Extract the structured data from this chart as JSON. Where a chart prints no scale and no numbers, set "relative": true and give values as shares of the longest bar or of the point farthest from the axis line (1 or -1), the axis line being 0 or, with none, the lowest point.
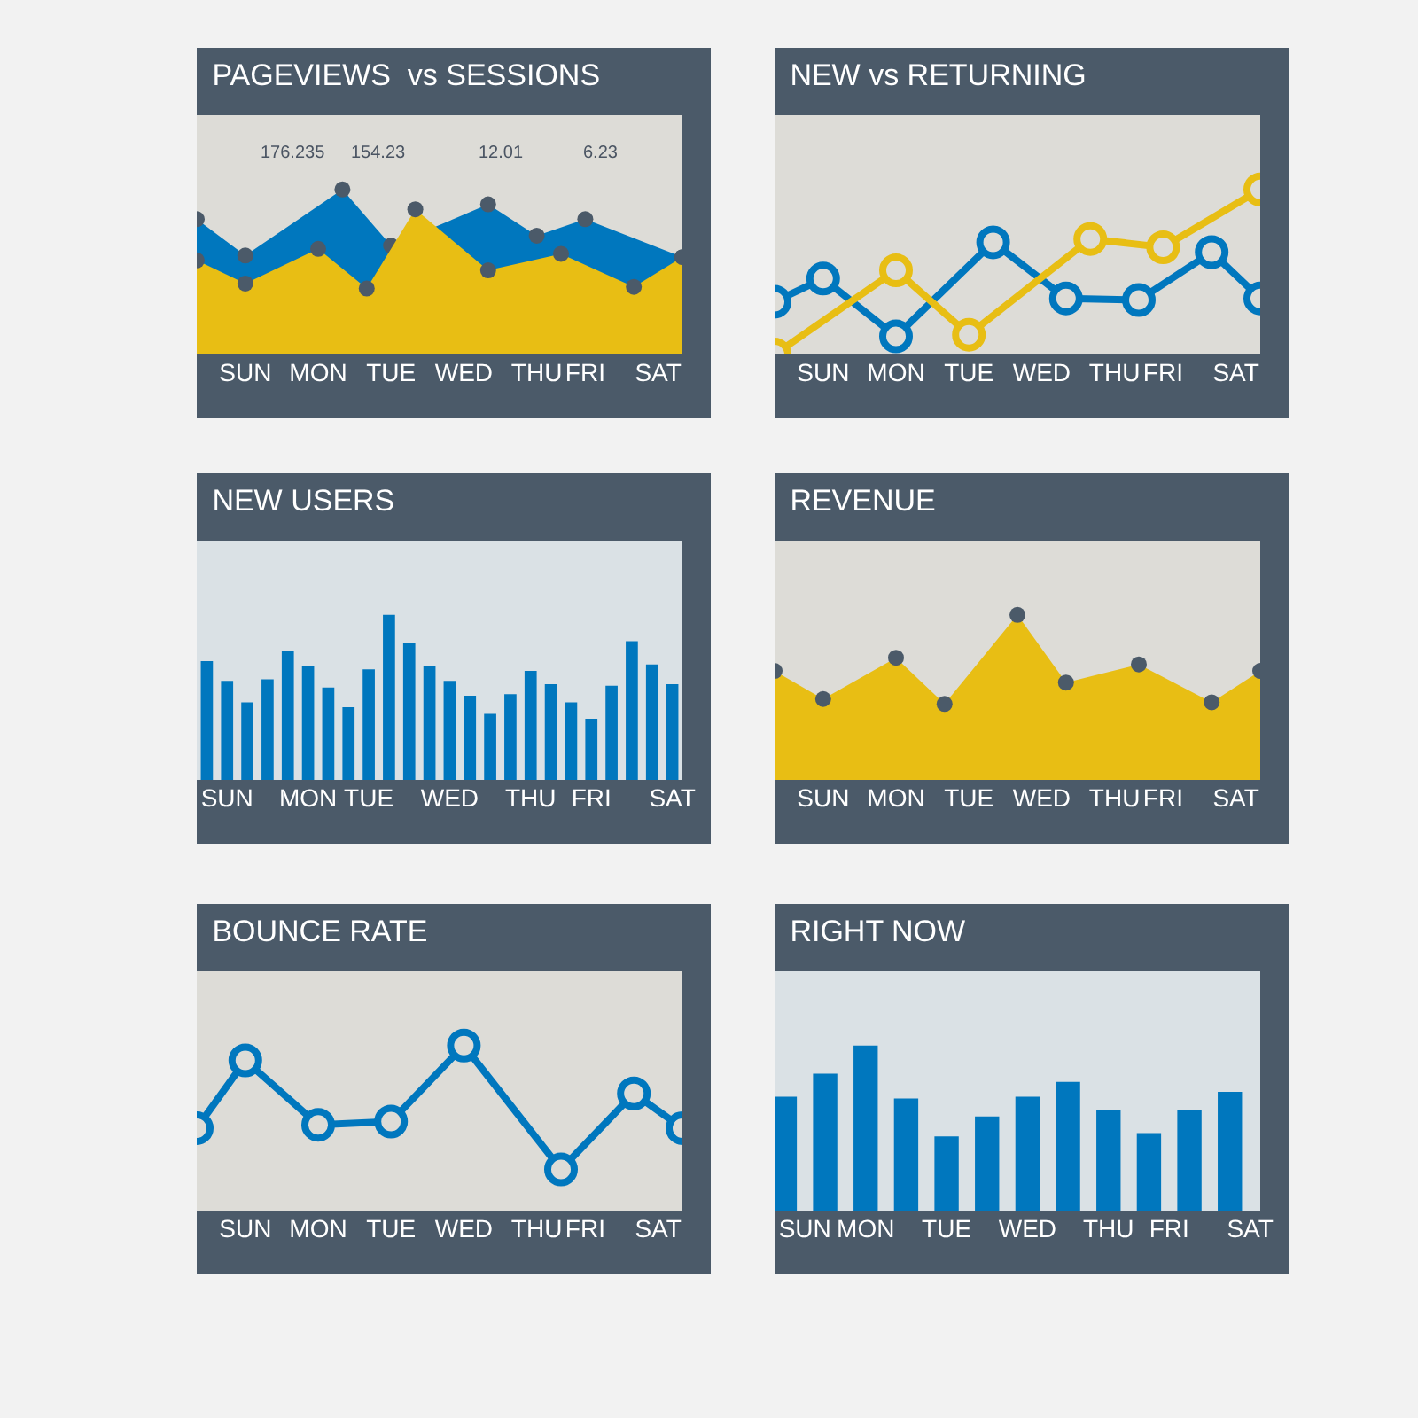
{
  "chart_data": [
    {
      "type": "area",
      "title": "PAGEVIEWS  vs SESSIONS",
      "relative": true,
      "tick_labels": "x",
      "marker": "circle",
      "legend": false,
      "grid": false,
      "categories": [
        null,
        null,
        "SUN",
        null,
        null,
        "MON",
        null,
        null,
        "TUE",
        null,
        null,
        "WED",
        null,
        null,
        "THU",
        null,
        "FRI",
        null,
        null,
        "SAT",
        null
      ],
      "annotations": [
        "176.235",
        "154.23",
        "12.01",
        "6.23"
      ],
      "series": [
        {
          "color": "#0077be",
          "values": [
            0.82,
            null,
            0.6,
            null,
            null,
            null,
            1.0,
            null,
            0.66,
            null,
            null,
            null,
            0.91,
            null,
            0.72,
            null,
            0.82,
            null,
            null,
            null,
            0.59
          ]
        },
        {
          "color": "#e8be14",
          "values": [
            0.57,
            null,
            0.43,
            null,
            null,
            0.64,
            null,
            0.4,
            null,
            0.88,
            null,
            null,
            0.51,
            null,
            null,
            0.61,
            null,
            null,
            0.41,
            null,
            0.59
          ]
        }
      ]
    },
    {
      "type": "line",
      "title": "NEW vs RETURNING",
      "relative": true,
      "tick_labels": "x",
      "marker": "circle",
      "legend": false,
      "grid": false,
      "categories": [
        null,
        null,
        "SUN",
        null,
        null,
        "MON",
        null,
        null,
        "TUE",
        null,
        null,
        "WED",
        null,
        null,
        "THU",
        null,
        "FRI",
        null,
        null,
        "SAT",
        null
      ],
      "series": [
        {
          "color": "#0077be",
          "values": [
            0.32,
            null,
            0.46,
            null,
            null,
            0.11,
            null,
            null,
            null,
            0.68,
            null,
            null,
            0.34,
            null,
            null,
            0.33,
            null,
            null,
            0.62,
            null,
            0.34
          ]
        },
        {
          "color": "#e8be14",
          "values": [
            0,
            null,
            null,
            null,
            null,
            0.51,
            null,
            null,
            0.12,
            null,
            null,
            null,
            null,
            0.7,
            null,
            null,
            0.65,
            null,
            null,
            null,
            1.0
          ]
        }
      ]
    },
    {
      "type": "bar",
      "title": "NEW USERS",
      "relative": true,
      "tick_labels": "x",
      "legend": false,
      "grid": false,
      "categories": [
        null,
        "SUN",
        null,
        null,
        null,
        "MON",
        null,
        null,
        "TUE",
        null,
        null,
        null,
        "WED",
        null,
        null,
        null,
        "THU",
        null,
        null,
        "FRI",
        null,
        null,
        null,
        "SAT"
      ],
      "series": [
        {
          "color": "#0077be",
          "values": [
            0.72,
            0.6,
            0.47,
            0.61,
            0.78,
            0.69,
            0.56,
            0.44,
            0.67,
            1.0,
            0.83,
            0.69,
            0.6,
            0.51,
            0.4,
            0.52,
            0.66,
            0.58,
            0.47,
            0.37,
            0.57,
            0.84,
            0.7,
            0.58
          ]
        }
      ]
    },
    {
      "type": "area",
      "title": "REVENUE",
      "relative": true,
      "tick_labels": "x",
      "marker": "circle",
      "legend": false,
      "grid": false,
      "categories": [
        null,
        null,
        "SUN",
        null,
        null,
        "MON",
        null,
        null,
        "TUE",
        null,
        null,
        "WED",
        null,
        null,
        "THU",
        null,
        "FRI",
        null,
        null,
        "SAT",
        null
      ],
      "series": [
        {
          "color": "#e8be14",
          "values": [
            0.66,
            null,
            0.49,
            null,
            null,
            0.74,
            null,
            0.46,
            null,
            null,
            1.0,
            null,
            0.59,
            null,
            null,
            0.7,
            null,
            null,
            0.47,
            null,
            0.66
          ]
        }
      ]
    },
    {
      "type": "line",
      "title": "BOUNCE RATE",
      "relative": true,
      "tick_labels": "x",
      "marker": "circle",
      "legend": false,
      "grid": false,
      "categories": [
        null,
        null,
        "SUN",
        null,
        null,
        "MON",
        null,
        null,
        "TUE",
        null,
        null,
        "WED",
        null,
        null,
        "THU",
        null,
        "FRI",
        null,
        null,
        "SAT",
        null
      ],
      "series": [
        {
          "color": "#0077be",
          "values": [
            0.5,
            null,
            0.91,
            null,
            null,
            0.52,
            null,
            null,
            0.54,
            null,
            null,
            1.0,
            null,
            null,
            null,
            0.25,
            null,
            null,
            0.71,
            null,
            0.5
          ]
        }
      ]
    },
    {
      "type": "bar",
      "title": "RIGHT NOW",
      "relative": true,
      "tick_labels": "x",
      "legend": false,
      "grid": false,
      "categories": [
        null,
        "SUN",
        null,
        null,
        "MON",
        null,
        null,
        null,
        "TUE",
        null,
        null,
        null,
        "WED",
        null,
        null,
        null,
        "THU",
        null,
        null,
        "FRI",
        null,
        null,
        null,
        "SAT"
      ],
      "series": [
        {
          "color": "#0077be",
          "values": [
            0.69,
            null,
            0.83,
            null,
            1.0,
            null,
            0.68,
            null,
            0.45,
            null,
            0.57,
            null,
            0.69,
            null,
            0.78,
            null,
            0.61,
            null,
            0.47,
            null,
            0.61,
            null,
            0.72,
            null
          ]
        }
      ]
    }
  ]
}
